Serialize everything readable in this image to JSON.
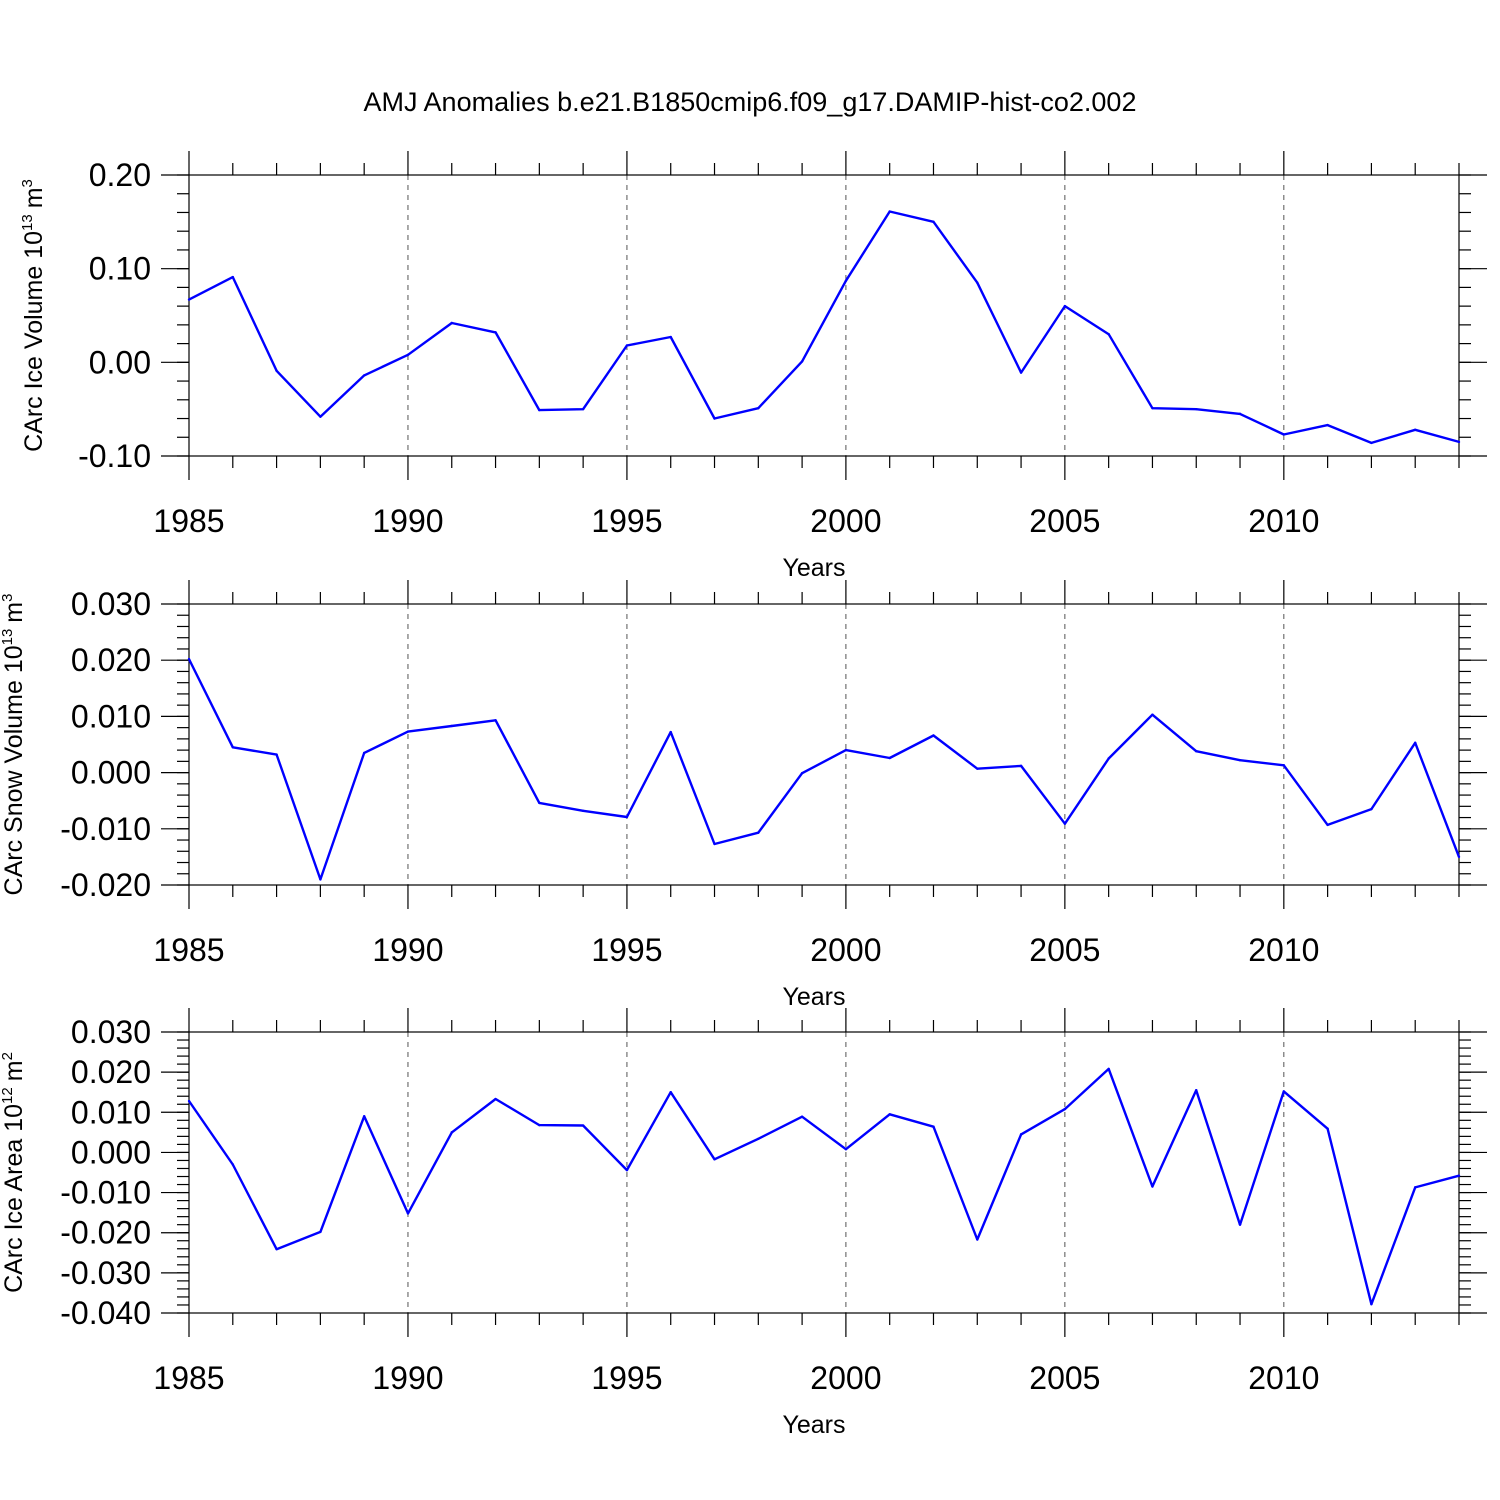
{
  "title": "AMJ Anomalies b.e21.B1850cmip6.f09_g17.DAMIP-hist-co2.002",
  "series_color": "#0000ff",
  "chart_data": [
    {
      "type": "line",
      "ylabel": "CArc Ice Volume 10",
      "ylabel_sup": "13",
      "ylabel_unit": "m",
      "ylabel_unit_sup": "3",
      "xlabel": "Years",
      "xlim": [
        1985,
        2014
      ],
      "ylim": [
        -0.1,
        0.2
      ],
      "yticks": [
        -0.1,
        0.0,
        0.1,
        0.2
      ],
      "ytick_labels": [
        "-0.10",
        "0.00",
        "0.10",
        "0.20"
      ],
      "yminor_step": 0.02,
      "xticks": [
        1985,
        1990,
        1995,
        2000,
        2005,
        2010
      ],
      "xtick_labels": [
        "1985",
        "1990",
        "1995",
        "2000",
        "2005",
        "2010"
      ],
      "x": [
        1985,
        1986,
        1987,
        1988,
        1989,
        1990,
        1991,
        1992,
        1993,
        1994,
        1995,
        1996,
        1997,
        1998,
        1999,
        2000,
        2001,
        2002,
        2003,
        2004,
        2005,
        2006,
        2007,
        2008,
        2009,
        2010,
        2011,
        2012,
        2013,
        2014
      ],
      "values": [
        0.067,
        0.091,
        -0.009,
        -0.058,
        -0.014,
        0.008,
        0.042,
        0.032,
        -0.051,
        -0.05,
        0.018,
        0.027,
        -0.06,
        -0.049,
        0.001,
        0.087,
        0.161,
        0.15,
        0.085,
        -0.011,
        0.06,
        0.03,
        -0.049,
        -0.05,
        -0.055,
        -0.077,
        -0.067,
        -0.086,
        -0.072,
        -0.085
      ]
    },
    {
      "type": "line",
      "ylabel": "CArc Snow Volume 10",
      "ylabel_sup": "13",
      "ylabel_unit": "m",
      "ylabel_unit_sup": "3",
      "xlabel": "Years",
      "xlim": [
        1985,
        2014
      ],
      "ylim": [
        -0.02,
        0.03
      ],
      "yticks": [
        -0.02,
        -0.01,
        0.0,
        0.01,
        0.02,
        0.03
      ],
      "ytick_labels": [
        "-0.020",
        "-0.010",
        "0.000",
        "0.010",
        "0.020",
        "0.030"
      ],
      "yminor_step": 0.002,
      "xticks": [
        1985,
        1990,
        1995,
        2000,
        2005,
        2010
      ],
      "xtick_labels": [
        "1985",
        "1990",
        "1995",
        "2000",
        "2005",
        "2010"
      ],
      "x": [
        1985,
        1986,
        1987,
        1988,
        1989,
        1990,
        1991,
        1992,
        1993,
        1994,
        1995,
        1996,
        1997,
        1998,
        1999,
        2000,
        2001,
        2002,
        2003,
        2004,
        2005,
        2006,
        2007,
        2008,
        2009,
        2010,
        2011,
        2012,
        2013,
        2014
      ],
      "values": [
        0.0202,
        0.0045,
        0.0032,
        -0.019,
        0.0035,
        0.0073,
        0.0083,
        0.0093,
        -0.0054,
        -0.0068,
        -0.0079,
        0.0072,
        -0.0127,
        -0.0107,
        -0.0001,
        0.004,
        0.0026,
        0.0066,
        0.0007,
        0.0012,
        -0.0091,
        0.0025,
        0.0103,
        0.0038,
        0.0022,
        0.0013,
        -0.0093,
        -0.0065,
        0.0053,
        -0.015
      ]
    },
    {
      "type": "line",
      "ylabel": "CArc Ice Area 10",
      "ylabel_sup": "12",
      "ylabel_unit": "m",
      "ylabel_unit_sup": "2",
      "xlabel": "Years",
      "xlim": [
        1985,
        2014
      ],
      "ylim": [
        -0.04,
        0.03
      ],
      "yticks": [
        -0.04,
        -0.03,
        -0.02,
        -0.01,
        0.0,
        0.01,
        0.02,
        0.03
      ],
      "ytick_labels": [
        "-0.040",
        "-0.030",
        "-0.020",
        "-0.010",
        "0.000",
        "0.010",
        "0.020",
        "0.030"
      ],
      "yminor_step": 0.002,
      "xticks": [
        1985,
        1990,
        1995,
        2000,
        2005,
        2010
      ],
      "xtick_labels": [
        "1985",
        "1990",
        "1995",
        "2000",
        "2005",
        "2010"
      ],
      "x": [
        1985,
        1986,
        1987,
        1988,
        1989,
        1990,
        1991,
        1992,
        1993,
        1994,
        1995,
        1996,
        1997,
        1998,
        1999,
        2000,
        2001,
        2002,
        2003,
        2004,
        2005,
        2006,
        2007,
        2008,
        2009,
        2010,
        2011,
        2012,
        2013,
        2014
      ],
      "values": [
        0.0128,
        -0.003,
        -0.0241,
        -0.0198,
        0.009,
        -0.0152,
        0.005,
        0.0133,
        0.0068,
        0.0067,
        -0.0044,
        0.015,
        -0.0017,
        0.0034,
        0.0089,
        0.0008,
        0.0095,
        0.0064,
        -0.0217,
        0.0045,
        0.0108,
        0.0208,
        -0.0085,
        0.0155,
        -0.018,
        0.0152,
        0.0059,
        -0.0378,
        -0.0087,
        -0.0058
      ]
    }
  ]
}
